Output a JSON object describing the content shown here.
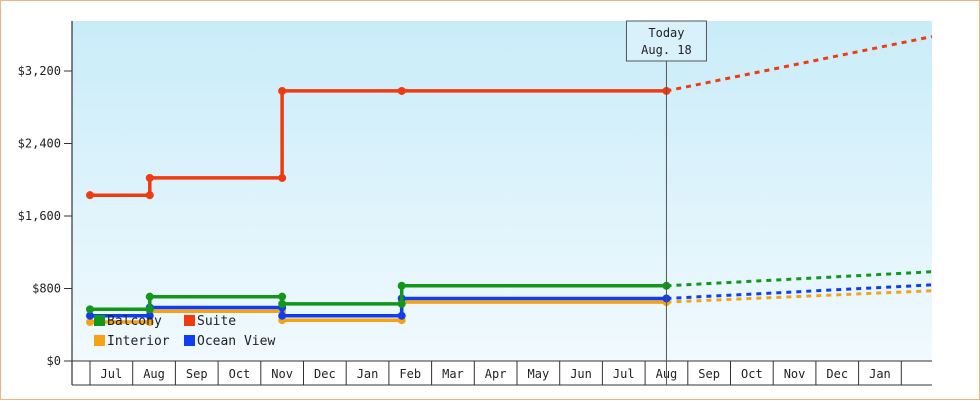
{
  "chart_data": {
    "type": "line",
    "title": "",
    "xlabel": "",
    "ylabel": "",
    "ylim": [
      0,
      3200
    ],
    "y_ticks": [
      {
        "value": 0,
        "label": "$0"
      },
      {
        "value": 800,
        "label": "$800"
      },
      {
        "value": 1600,
        "label": "$1,600"
      },
      {
        "value": 2400,
        "label": "$2,400"
      },
      {
        "value": 3200,
        "label": "$3,200"
      }
    ],
    "x_ticks": [
      "Jul",
      "Aug",
      "Sep",
      "Oct",
      "Nov",
      "Dec",
      "Jan",
      "Feb",
      "Mar",
      "Apr",
      "May",
      "Jun",
      "Jul",
      "Aug",
      "Sep",
      "Oct",
      "Nov",
      "Dec",
      "Jan"
    ],
    "grid": false,
    "legend_placement": "bottom-left",
    "today_marker": {
      "line1": "Today",
      "line2": "Aug. 18",
      "month_index": 13.0
    },
    "series": [
      {
        "name": "Balcony",
        "color": "#11981a",
        "steps": [
          [
            -0.5,
            570
          ],
          [
            0.9,
            570
          ],
          [
            0.9,
            710
          ],
          [
            4.0,
            710
          ],
          [
            4.0,
            630
          ],
          [
            6.8,
            630
          ],
          [
            6.8,
            830
          ],
          [
            13.0,
            830
          ]
        ],
        "forecast_end": 985
      },
      {
        "name": "Suite",
        "color": "#f03a10",
        "steps": [
          [
            -0.5,
            1830
          ],
          [
            0.9,
            1830
          ],
          [
            0.9,
            2020
          ],
          [
            4.0,
            2020
          ],
          [
            4.0,
            2980
          ],
          [
            6.8,
            2980
          ],
          [
            13.0,
            2980
          ]
        ],
        "forecast_end": 3580
      },
      {
        "name": "Interior",
        "color": "#f5a315",
        "steps": [
          [
            -0.5,
            430
          ],
          [
            0.9,
            430
          ],
          [
            0.9,
            550
          ],
          [
            4.0,
            550
          ],
          [
            4.0,
            450
          ],
          [
            6.8,
            450
          ],
          [
            6.8,
            650
          ],
          [
            13.0,
            650
          ]
        ],
        "forecast_end": 775
      },
      {
        "name": "Ocean View",
        "color": "#0f3ef0",
        "steps": [
          [
            -0.5,
            500
          ],
          [
            0.9,
            500
          ],
          [
            0.9,
            590
          ],
          [
            4.0,
            590
          ],
          [
            4.0,
            500
          ],
          [
            6.8,
            500
          ],
          [
            6.8,
            690
          ],
          [
            13.0,
            690
          ]
        ],
        "forecast_end": 840
      }
    ]
  }
}
